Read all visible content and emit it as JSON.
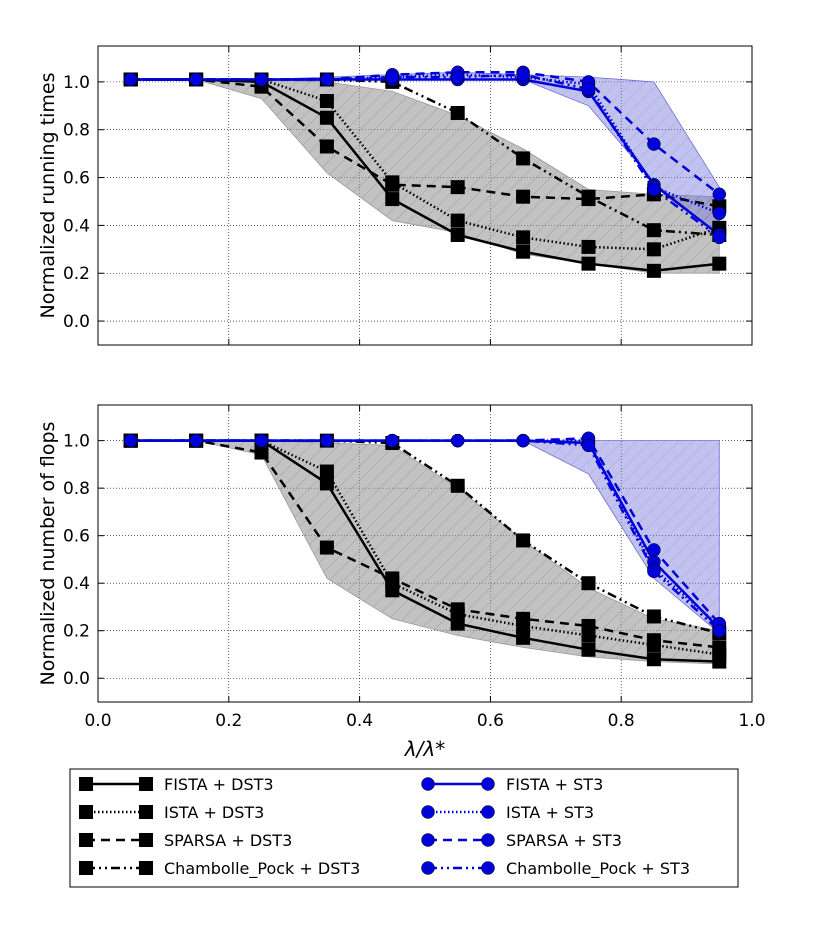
{
  "chart_data": [
    {
      "type": "line",
      "title": "",
      "xlabel": "",
      "ylabel": "Normalized running times",
      "xlim": [
        0.0,
        1.0
      ],
      "ylim": [
        -0.1,
        1.15
      ],
      "xticks": [],
      "yticks": [
        "0.0",
        "0.2",
        "0.4",
        "0.6",
        "0.8",
        "1.0"
      ],
      "ytick_values": [
        0.0,
        0.2,
        0.4,
        0.6,
        0.8,
        1.0
      ],
      "grid": true,
      "x": [
        0.05,
        0.15,
        0.25,
        0.35,
        0.45,
        0.55,
        0.65,
        0.75,
        0.85,
        0.95
      ],
      "bands": [
        {
          "group": "DST3",
          "color": "#999999",
          "hatch": true,
          "upper": [
            1.01,
            1.01,
            1.01,
            1.0,
            0.96,
            0.86,
            0.72,
            0.55,
            0.53,
            0.52
          ],
          "lower": [
            1.01,
            1.01,
            0.93,
            0.62,
            0.42,
            0.37,
            0.28,
            0.24,
            0.2,
            0.2
          ]
        },
        {
          "group": "ST3",
          "color": "#6b6bd6",
          "hatch": true,
          "upper": [
            1.01,
            1.01,
            1.01,
            1.02,
            1.03,
            1.04,
            1.03,
            1.02,
            1.0,
            0.56
          ],
          "lower": [
            1.01,
            1.01,
            1.01,
            1.01,
            1.01,
            1.01,
            1.01,
            0.9,
            0.58,
            0.36
          ]
        }
      ],
      "series": [
        {
          "name": "FISTA + DST3",
          "color": "#000000",
          "dash": "solid",
          "marker": "square",
          "values": [
            1.01,
            1.01,
            1.0,
            0.85,
            0.51,
            0.36,
            0.29,
            0.24,
            0.21,
            0.24
          ]
        },
        {
          "name": "ISTA + DST3",
          "color": "#000000",
          "dash": "dotted",
          "marker": "square",
          "values": [
            1.01,
            1.01,
            1.01,
            0.92,
            0.58,
            0.42,
            0.35,
            0.31,
            0.3,
            0.39
          ]
        },
        {
          "name": "SPARSA + DST3",
          "color": "#000000",
          "dash": "dashed",
          "marker": "square",
          "values": [
            1.01,
            1.01,
            0.98,
            0.73,
            0.57,
            0.56,
            0.52,
            0.51,
            0.53,
            0.48
          ]
        },
        {
          "name": "Chambolle_Pock + DST3",
          "color": "#000000",
          "dash": "dashdotdot",
          "marker": "square",
          "values": [
            1.01,
            1.01,
            1.01,
            1.01,
            1.0,
            0.87,
            0.68,
            0.52,
            0.38,
            0.36
          ]
        },
        {
          "name": "FISTA + ST3",
          "color": "#0000dd",
          "dash": "solid",
          "marker": "circle",
          "values": [
            1.01,
            1.01,
            1.01,
            1.01,
            1.01,
            1.01,
            1.01,
            0.96,
            0.57,
            0.36
          ]
        },
        {
          "name": "ISTA + ST3",
          "color": "#0000dd",
          "dash": "dotted",
          "marker": "circle",
          "values": [
            1.01,
            1.01,
            1.01,
            1.01,
            1.02,
            1.03,
            1.02,
            0.99,
            0.56,
            0.45
          ]
        },
        {
          "name": "SPARSA + ST3",
          "color": "#0000dd",
          "dash": "dashed",
          "marker": "circle",
          "values": [
            1.01,
            1.01,
            1.01,
            1.01,
            1.03,
            1.04,
            1.04,
            1.0,
            0.74,
            0.53
          ]
        },
        {
          "name": "Chambolle_Pock + ST3",
          "color": "#0000dd",
          "dash": "dashdotdot",
          "marker": "circle",
          "values": [
            1.01,
            1.01,
            1.01,
            1.01,
            1.02,
            1.02,
            1.03,
            0.97,
            0.55,
            0.35
          ]
        }
      ]
    },
    {
      "type": "line",
      "title": "",
      "xlabel": "λ/λ*",
      "ylabel": "Normalized number of flops",
      "xlim": [
        0.0,
        1.0
      ],
      "ylim": [
        -0.1,
        1.15
      ],
      "xticks": [
        "0.0",
        "0.2",
        "0.4",
        "0.6",
        "0.8",
        "1.0"
      ],
      "xtick_values": [
        0.0,
        0.2,
        0.4,
        0.6,
        0.8,
        1.0
      ],
      "yticks": [
        "0.0",
        "0.2",
        "0.4",
        "0.6",
        "0.8",
        "1.0"
      ],
      "ytick_values": [
        0.0,
        0.2,
        0.4,
        0.6,
        0.8,
        1.0
      ],
      "grid": true,
      "x": [
        0.05,
        0.15,
        0.25,
        0.35,
        0.45,
        0.55,
        0.65,
        0.75,
        0.85,
        0.95
      ],
      "bands": [
        {
          "group": "DST3",
          "color": "#999999",
          "hatch": true,
          "upper": [
            1.0,
            1.0,
            1.0,
            0.99,
            0.98,
            0.8,
            0.58,
            0.38,
            0.25,
            0.2
          ],
          "lower": [
            1.0,
            1.0,
            0.94,
            0.42,
            0.25,
            0.18,
            0.13,
            0.09,
            0.07,
            0.06
          ]
        },
        {
          "group": "ST3",
          "color": "#6b6bd6",
          "hatch": true,
          "upper": [
            1.0,
            1.0,
            1.0,
            1.0,
            1.0,
            1.0,
            1.0,
            1.0,
            0.58,
            0.26
          ]
        },
        {
          "group": "ST3-lower-ref",
          "color": "#6b6bd6",
          "hatch": false,
          "upper": [
            1.0,
            1.0,
            1.0,
            1.0,
            1.0,
            1.0,
            1.0,
            1.0,
            1.0,
            1.0
          ],
          "lower": [
            1.0,
            1.0,
            1.0,
            1.0,
            1.0,
            1.0,
            1.0,
            0.86,
            0.42,
            0.19
          ]
        }
      ],
      "series": [
        {
          "name": "FISTA + DST3",
          "color": "#000000",
          "dash": "solid",
          "marker": "square",
          "values": [
            1.0,
            1.0,
            1.0,
            0.82,
            0.37,
            0.23,
            0.17,
            0.12,
            0.08,
            0.07
          ]
        },
        {
          "name": "ISTA + DST3",
          "color": "#000000",
          "dash": "dotted",
          "marker": "square",
          "values": [
            1.0,
            1.0,
            1.0,
            0.87,
            0.4,
            0.27,
            0.22,
            0.18,
            0.14,
            0.1
          ]
        },
        {
          "name": "SPARSA + DST3",
          "color": "#000000",
          "dash": "dashed",
          "marker": "square",
          "values": [
            1.0,
            1.0,
            0.95,
            0.55,
            0.42,
            0.29,
            0.25,
            0.22,
            0.16,
            0.13
          ]
        },
        {
          "name": "Chambolle_Pock + DST3",
          "color": "#000000",
          "dash": "dashdotdot",
          "marker": "square",
          "values": [
            1.0,
            1.0,
            1.0,
            1.0,
            0.99,
            0.81,
            0.58,
            0.4,
            0.26,
            0.19
          ]
        },
        {
          "name": "FISTA + ST3",
          "color": "#0000dd",
          "dash": "solid",
          "marker": "circle",
          "values": [
            1.0,
            1.0,
            1.0,
            1.0,
            1.0,
            1.0,
            1.0,
            0.99,
            0.49,
            0.21
          ]
        },
        {
          "name": "ISTA + ST3",
          "color": "#0000dd",
          "dash": "dotted",
          "marker": "circle",
          "values": [
            1.0,
            1.0,
            1.0,
            1.0,
            1.0,
            1.0,
            1.0,
            1.0,
            0.46,
            0.22
          ]
        },
        {
          "name": "SPARSA + ST3",
          "color": "#0000dd",
          "dash": "dashed",
          "marker": "circle",
          "values": [
            1.0,
            1.0,
            1.0,
            1.0,
            1.0,
            1.0,
            1.0,
            1.01,
            0.54,
            0.23
          ]
        },
        {
          "name": "Chambolle_Pock + ST3",
          "color": "#0000dd",
          "dash": "dashdotdot",
          "marker": "circle",
          "values": [
            1.0,
            1.0,
            1.0,
            1.0,
            1.0,
            1.0,
            1.0,
            0.98,
            0.45,
            0.2
          ]
        }
      ]
    }
  ],
  "legend": {
    "placement": "bottom",
    "columns": 2,
    "entries": [
      {
        "label": "FISTA + DST3",
        "color": "#000000",
        "dash": "solid",
        "marker": "square"
      },
      {
        "label": "FISTA + ST3",
        "color": "#0000dd",
        "dash": "solid",
        "marker": "circle"
      },
      {
        "label": "ISTA + DST3",
        "color": "#000000",
        "dash": "dotted",
        "marker": "square"
      },
      {
        "label": "ISTA + ST3",
        "color": "#0000dd",
        "dash": "dotted",
        "marker": "circle"
      },
      {
        "label": "SPARSA + DST3",
        "color": "#000000",
        "dash": "dashed",
        "marker": "square"
      },
      {
        "label": "SPARSA + ST3",
        "color": "#0000dd",
        "dash": "dashed",
        "marker": "circle"
      },
      {
        "label": "Chambolle_Pock + DST3",
        "color": "#000000",
        "dash": "dashdotdot",
        "marker": "square"
      },
      {
        "label": "Chambolle_Pock + ST3",
        "color": "#0000dd",
        "dash": "dashdotdot",
        "marker": "circle"
      }
    ]
  }
}
